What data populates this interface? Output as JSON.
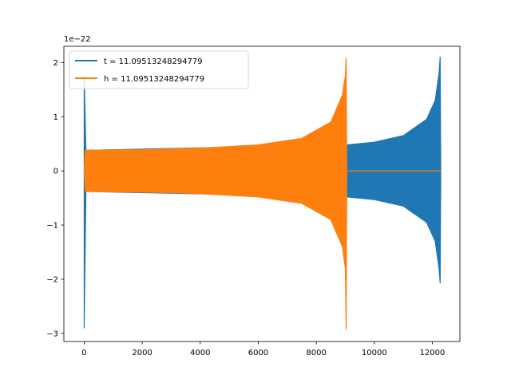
{
  "chart_data": {
    "type": "line",
    "offset_label": "1e−22",
    "xlim": [
      -700,
      12950
    ],
    "ylim": [
      -3.15,
      2.3
    ],
    "xticks": [
      0,
      2000,
      4000,
      6000,
      8000,
      10000,
      12000
    ],
    "xtick_labels": [
      "0",
      "2000",
      "4000",
      "6000",
      "8000",
      "10000",
      "12000"
    ],
    "yticks": [
      -3,
      -2,
      -1,
      0,
      1,
      2
    ],
    "ytick_labels": [
      "−3",
      "−2",
      "−1",
      "0",
      "1",
      "2"
    ],
    "legend_position": "top-left",
    "series": [
      {
        "name": "t = 11.09513248294779",
        "color": "#1f77b4",
        "envelope": [
          {
            "x": 0,
            "upper": 1.75,
            "lower": -2.9
          },
          {
            "x": 60,
            "upper": 0.38,
            "lower": -0.38
          },
          {
            "x": 9050,
            "upper": 0.48,
            "lower": -0.48
          },
          {
            "x": 10000,
            "upper": 0.53,
            "lower": -0.53
          },
          {
            "x": 11000,
            "upper": 0.65,
            "lower": -0.65
          },
          {
            "x": 11800,
            "upper": 0.95,
            "lower": -0.95
          },
          {
            "x": 12100,
            "upper": 1.3,
            "lower": -1.3
          },
          {
            "x": 12230,
            "upper": 1.8,
            "lower": -1.8
          },
          {
            "x": 12270,
            "upper": 2.1,
            "lower": -2.07
          },
          {
            "x": 12290,
            "upper": 0.0,
            "lower": 0.0
          }
        ]
      },
      {
        "name": "h = 11.09513248294779",
        "color": "#ff7f0e",
        "envelope": [
          {
            "x": 0,
            "upper": 0.0,
            "lower": 0.0
          },
          {
            "x": 40,
            "upper": 0.38,
            "lower": -0.38
          },
          {
            "x": 2000,
            "upper": 0.39,
            "lower": -0.39
          },
          {
            "x": 4000,
            "upper": 0.42,
            "lower": -0.42
          },
          {
            "x": 6000,
            "upper": 0.48,
            "lower": -0.48
          },
          {
            "x": 7500,
            "upper": 0.6,
            "lower": -0.6
          },
          {
            "x": 8500,
            "upper": 0.9,
            "lower": -0.9
          },
          {
            "x": 8900,
            "upper": 1.4,
            "lower": -1.4
          },
          {
            "x": 9000,
            "upper": 1.75,
            "lower": -1.8
          },
          {
            "x": 9030,
            "upper": 2.08,
            "lower": -2.92
          },
          {
            "x": 9050,
            "upper": 0.0,
            "lower": 0.0
          },
          {
            "x": 12290,
            "upper": 0.0,
            "lower": 0.0
          }
        ]
      }
    ]
  }
}
